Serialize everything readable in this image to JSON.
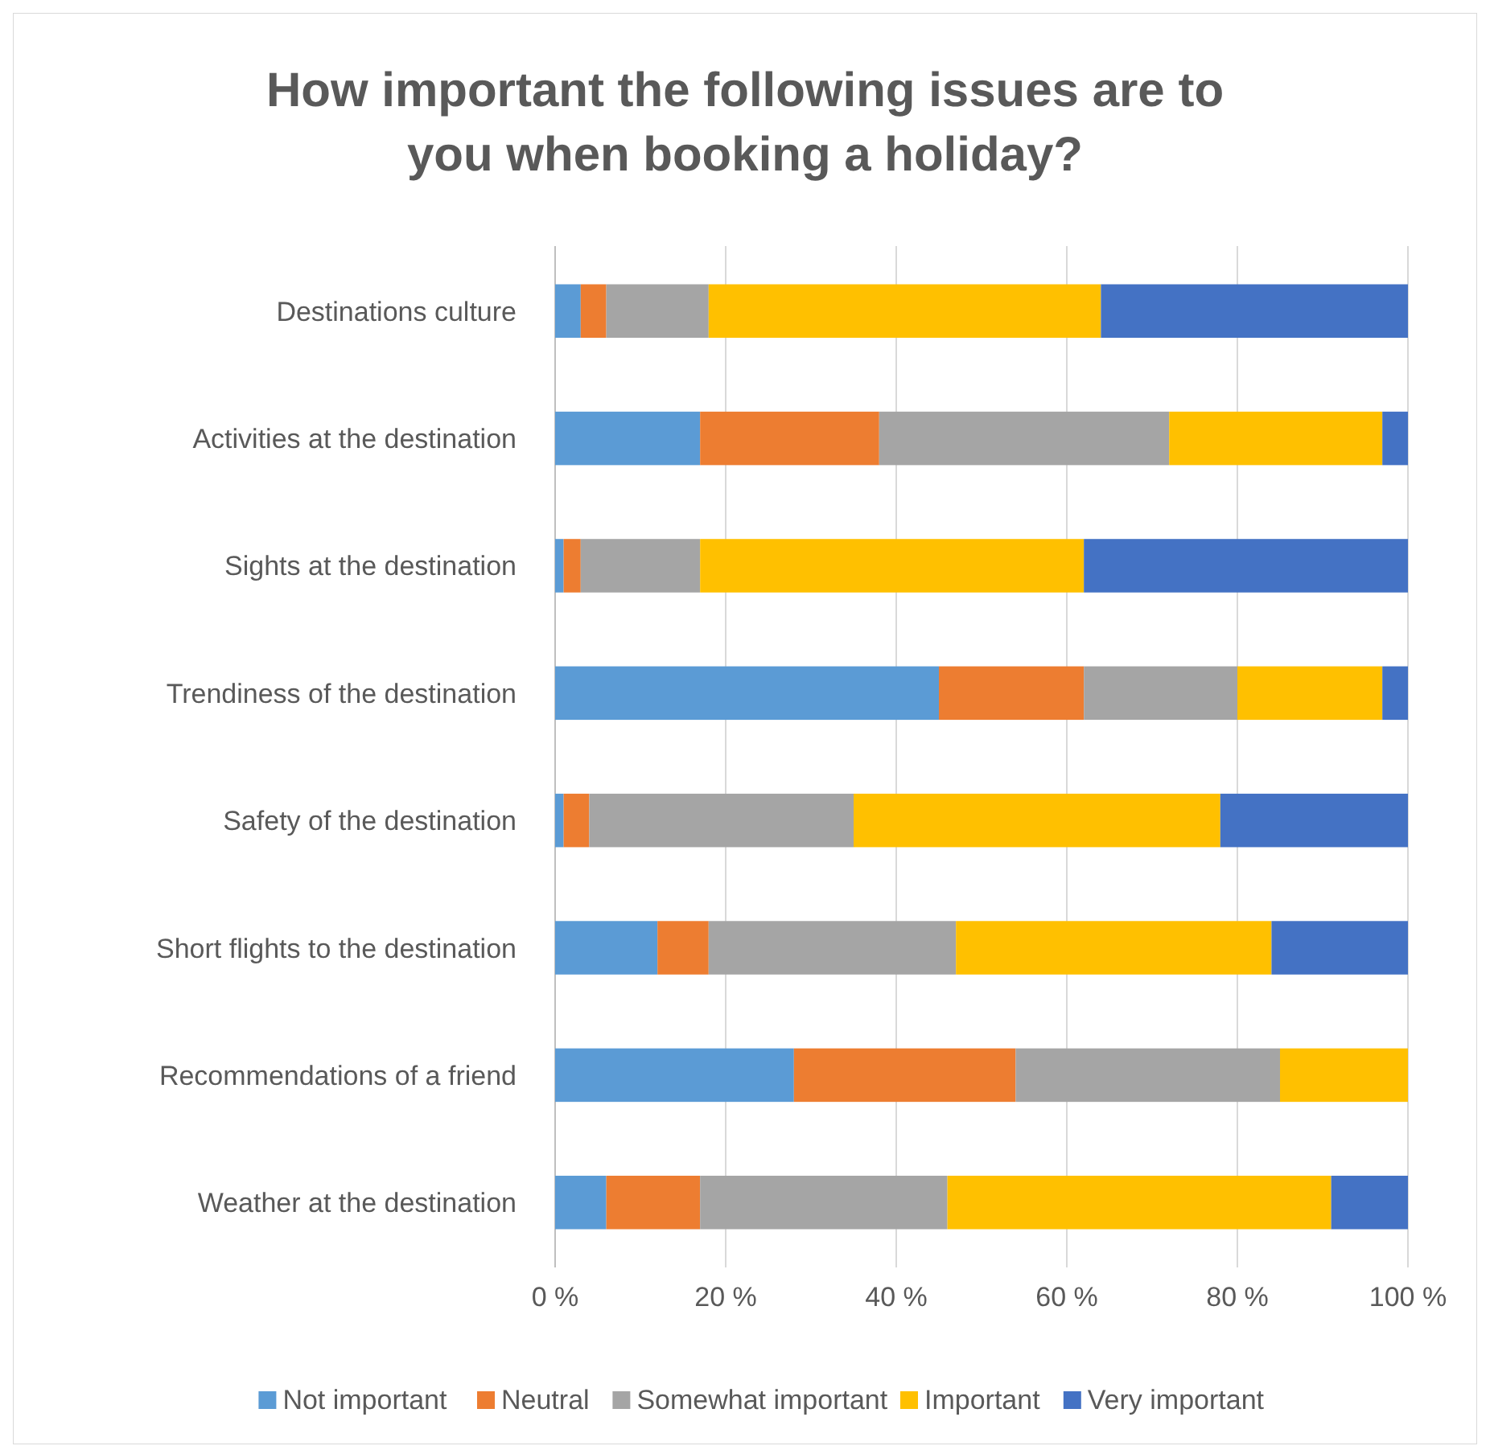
{
  "chart_data": {
    "type": "bar",
    "orientation": "horizontal",
    "stacked": true,
    "title": "How important the following issues are to you when booking a holiday?",
    "categories": [
      "Destinations culture",
      "Activities at the destination",
      "Sights at the destination",
      "Trendiness of the destination",
      "Safety of the destination",
      "Short flights to the destination",
      "Recommendations of a friend",
      "Weather at the destination"
    ],
    "series": [
      {
        "name": "Not important",
        "color": "#5b9bd5",
        "values": [
          3,
          17,
          1,
          45,
          1,
          12,
          28,
          6
        ]
      },
      {
        "name": "Neutral",
        "color": "#ed7d31",
        "values": [
          3,
          21,
          2,
          17,
          3,
          6,
          26,
          11
        ]
      },
      {
        "name": "Somewhat important",
        "color": "#a5a5a5",
        "values": [
          12,
          34,
          14,
          18,
          31,
          29,
          31,
          29
        ]
      },
      {
        "name": "Important",
        "color": "#ffc000",
        "values": [
          46,
          25,
          45,
          17,
          43,
          37,
          15,
          45
        ]
      },
      {
        "name": "Very important",
        "color": "#4472c4",
        "values": [
          36,
          3,
          38,
          3,
          22,
          16,
          0,
          9
        ]
      }
    ],
    "xlim": [
      0,
      100
    ],
    "xticks": [
      {
        "value": 0,
        "label": "0 %"
      },
      {
        "value": 20,
        "label": "20 %"
      },
      {
        "value": 40,
        "label": "40 %"
      },
      {
        "value": 60,
        "label": "60 %"
      },
      {
        "value": 80,
        "label": "80 %"
      },
      {
        "value": 100,
        "label": "100 %"
      }
    ],
    "grid": "x",
    "legend": "bottom"
  }
}
